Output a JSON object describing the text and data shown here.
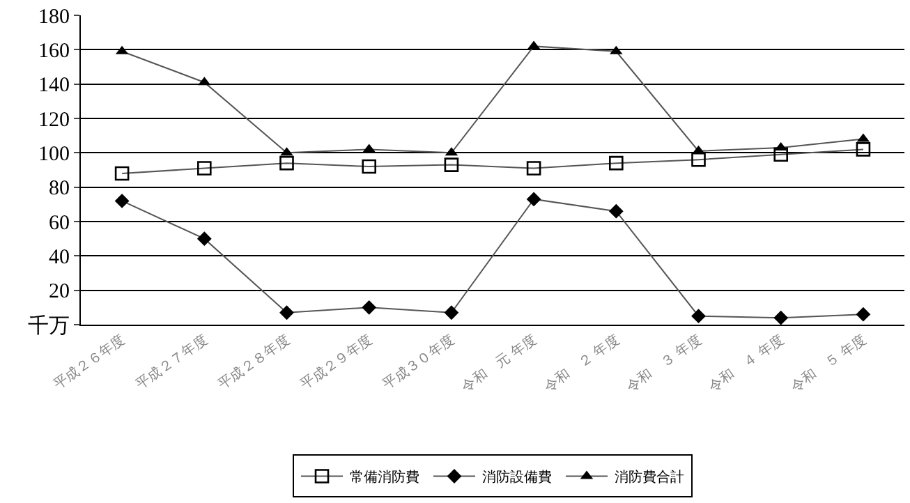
{
  "chart_data": {
    "type": "line",
    "categories": [
      "平成２６年度",
      "平成２７年度",
      "平成２８年度",
      "平成２９年度",
      "平成３０年度",
      "令和　元 年度",
      "令和　２ 年度",
      "令和　３ 年度",
      "令和　４ 年度",
      "令和　５ 年度"
    ],
    "series": [
      {
        "name": "常備消防費",
        "color": "#000000",
        "marker": "square",
        "values": [
          88,
          91,
          94,
          92,
          93,
          91,
          94,
          96,
          99,
          102
        ]
      },
      {
        "name": "消防設備費",
        "color": "#000000",
        "marker": "diamond",
        "values": [
          72,
          50,
          7,
          10,
          7,
          73,
          66,
          5,
          4,
          6
        ]
      },
      {
        "name": "消防費合計",
        "color": "#000000",
        "marker": "triangle",
        "values": [
          159,
          141,
          100,
          102,
          100,
          162,
          159,
          101,
          103,
          108
        ]
      }
    ],
    "ylim": [
      0,
      180
    ],
    "yticks": [
      {
        "value": 0,
        "label": "千万"
      },
      20,
      40,
      60,
      80,
      100,
      120,
      140,
      160,
      180
    ],
    "grid": "y",
    "legend": "bottom",
    "line_style": "solid"
  }
}
